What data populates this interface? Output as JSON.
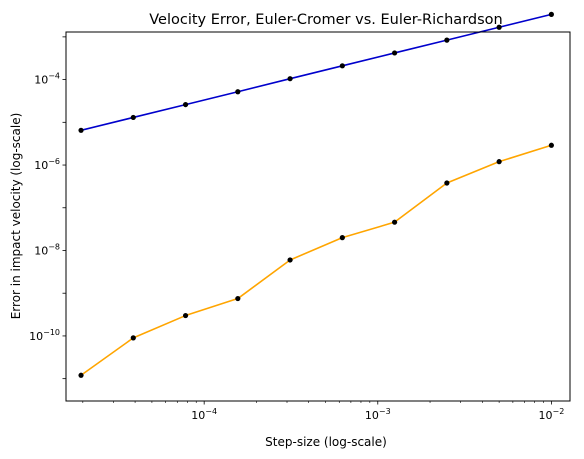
{
  "chart_data": {
    "type": "line",
    "title": "Velocity Error, Euler-Cromer vs. Euler-Richardson",
    "xlabel": "Step-size (log-scale)",
    "ylabel": "Error in impact velocity (log-scale)",
    "xscale": "log",
    "yscale": "log",
    "xlim": [
      1.6e-05,
      0.0128
    ],
    "ylim": [
      3e-12,
      0.0013
    ],
    "grid": false,
    "legend": "none",
    "x_ticks": [
      {
        "value": 0.0001,
        "base": "10",
        "exp": "−4"
      },
      {
        "value": 0.001,
        "base": "10",
        "exp": "−3"
      },
      {
        "value": 0.01,
        "base": "10",
        "exp": "−2"
      }
    ],
    "y_ticks": [
      {
        "value": 1e-10,
        "base": "10",
        "exp": "−10"
      },
      {
        "value": 1e-08,
        "base": "10",
        "exp": "−8"
      },
      {
        "value": 1e-06,
        "base": "10",
        "exp": "−6"
      },
      {
        "value": 0.0001,
        "base": "10",
        "exp": "−4"
      }
    ],
    "x": [
      1.953e-05,
      3.906e-05,
      7.8125e-05,
      0.00015625,
      0.0003125,
      0.000625,
      0.00125,
      0.0025,
      0.005,
      0.01
    ],
    "series": [
      {
        "color": "#0000cc",
        "values": [
          6.5e-06,
          1.3e-05,
          2.6e-05,
          5.2e-05,
          0.000105,
          0.00021,
          0.00042,
          0.00084,
          0.00168,
          0.00336
        ]
      },
      {
        "color": "#ffa500",
        "values": [
          1.2e-11,
          9e-11,
          3e-10,
          7.5e-10,
          6e-09,
          2e-08,
          4.6e-08,
          3.8e-07,
          1.2e-06,
          2.9e-06
        ]
      }
    ],
    "marker_color": "#000000"
  }
}
